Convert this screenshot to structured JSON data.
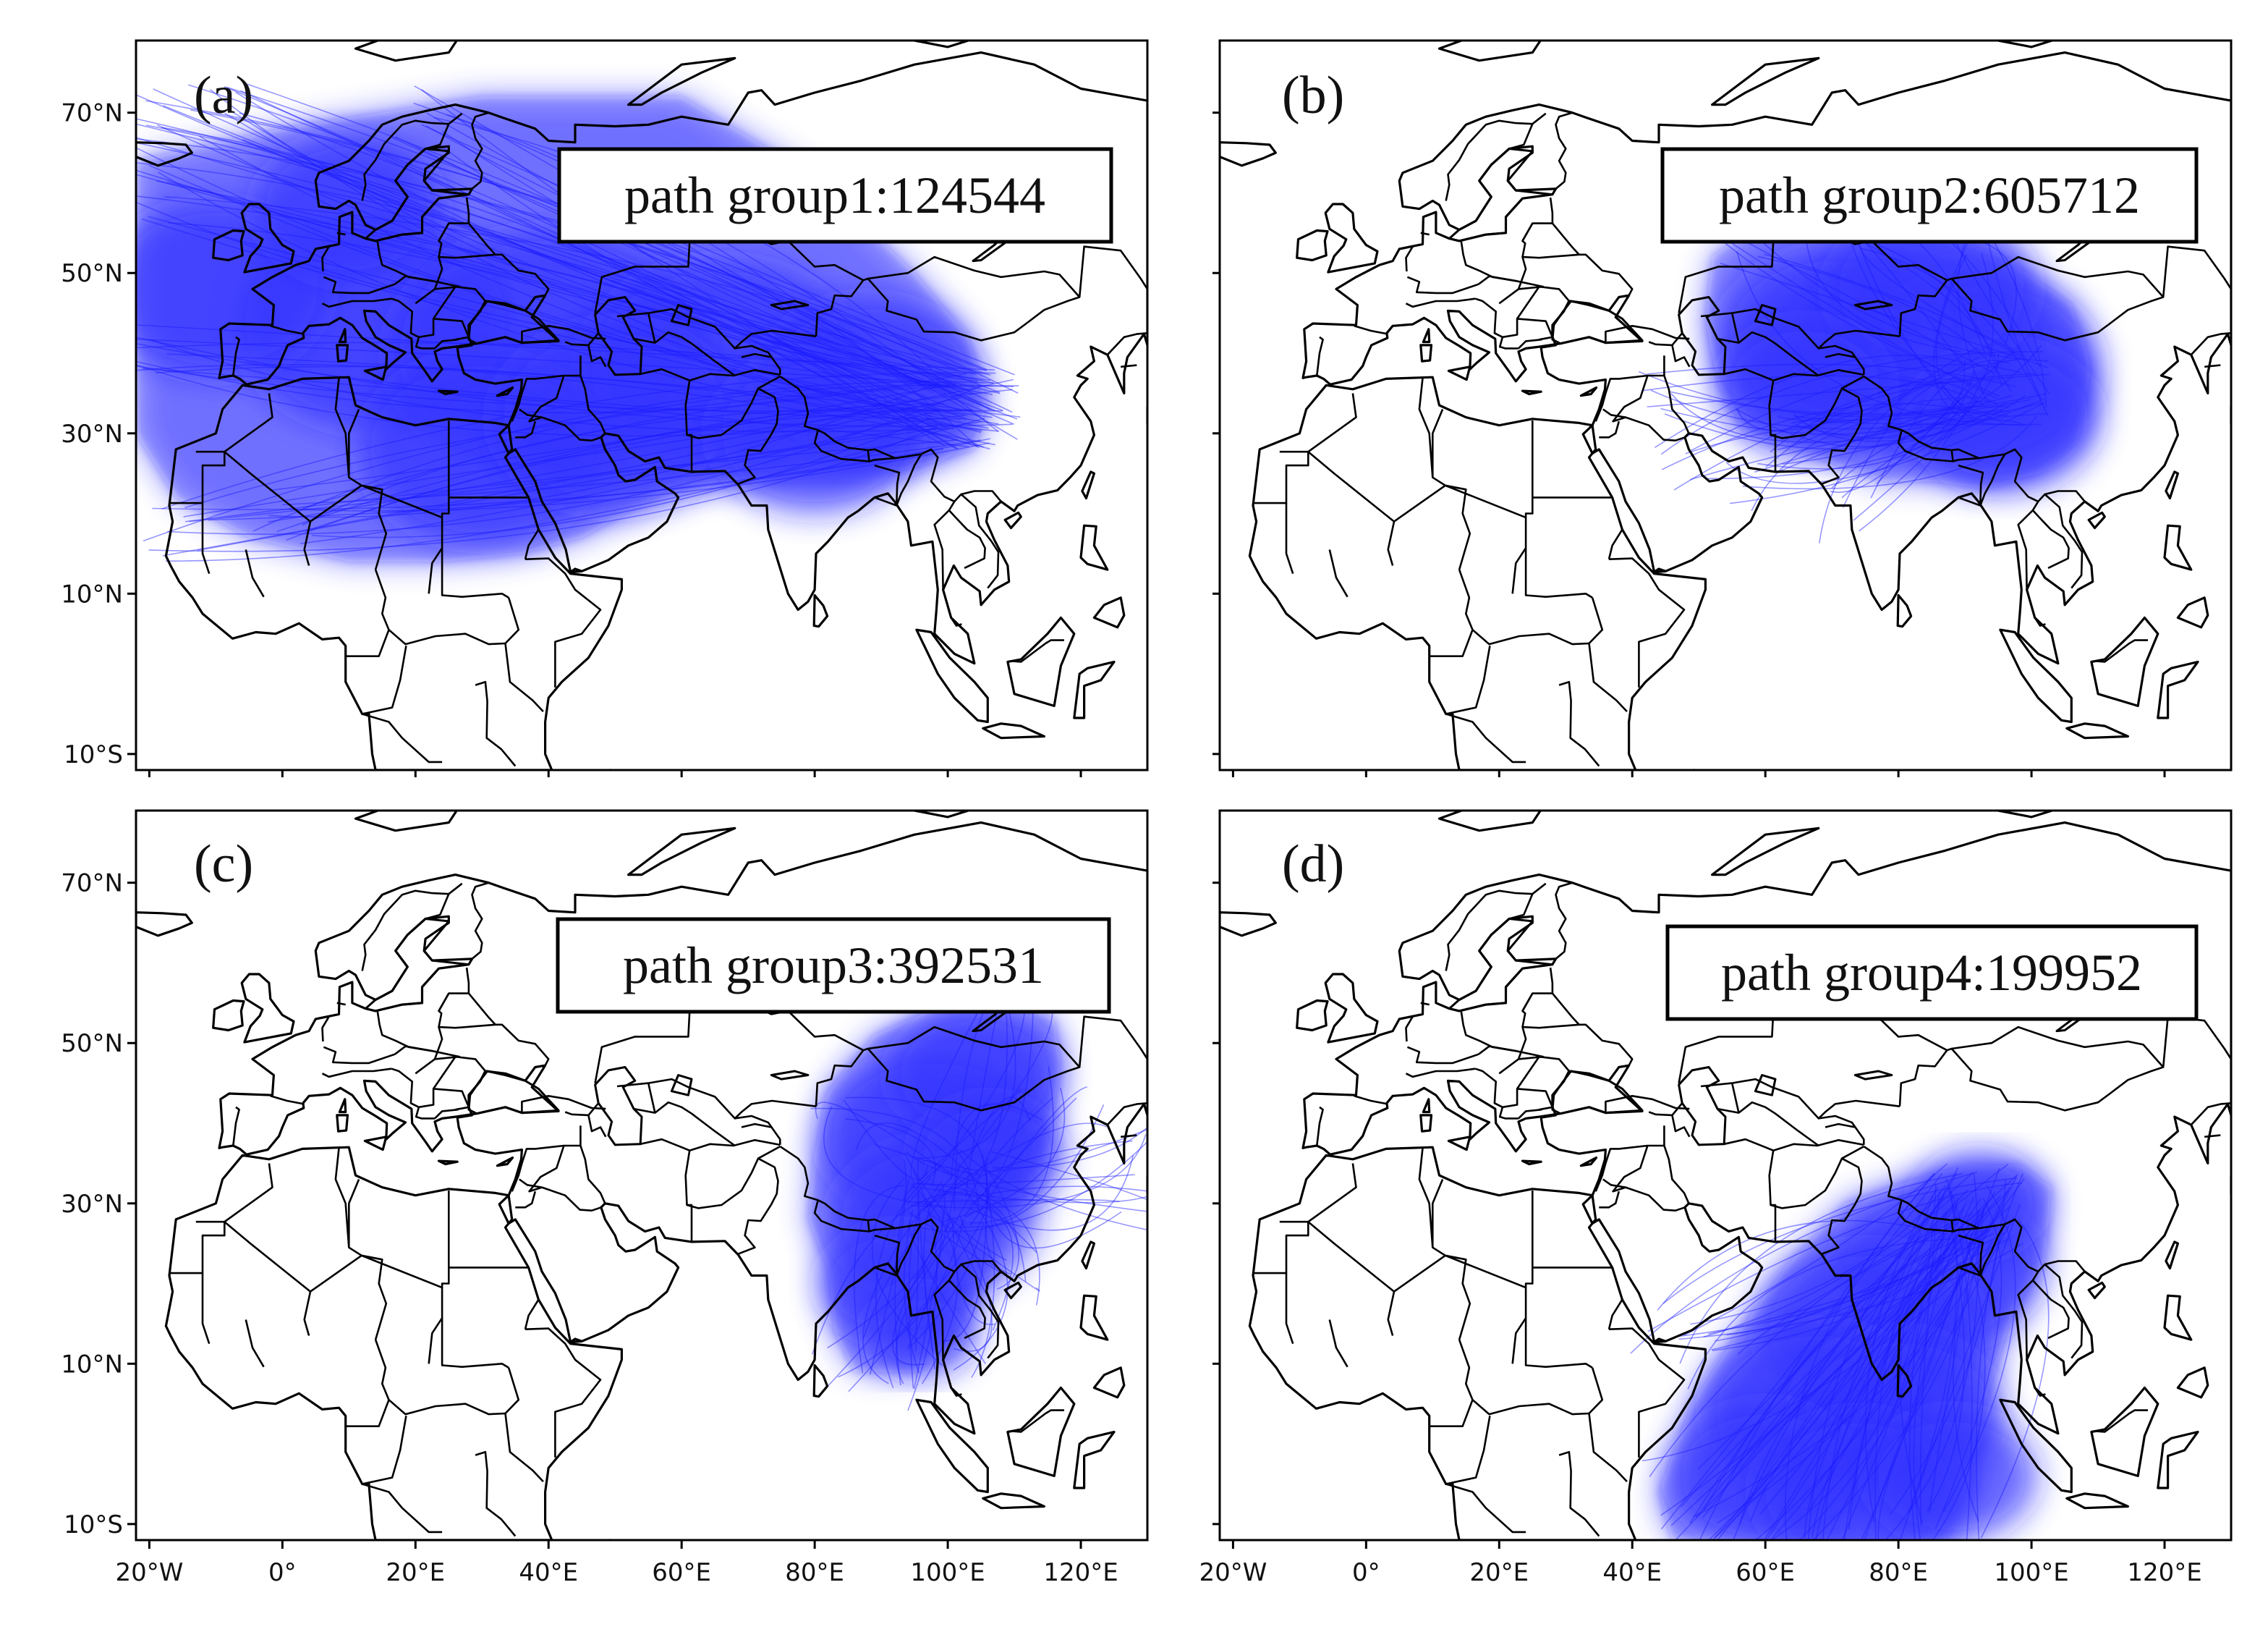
{
  "colors": {
    "path_color": "#1a1aff",
    "land_outline": "#000000",
    "background": "#ffffff"
  },
  "map_extent": {
    "lon": [
      -22,
      130
    ],
    "lat": [
      -12,
      79
    ]
  },
  "axis": {
    "lat_ticks": [
      {
        "value": 70,
        "label": "70°N"
      },
      {
        "value": 50,
        "label": "50°N"
      },
      {
        "value": 30,
        "label": "30°N"
      },
      {
        "value": 10,
        "label": "10°N"
      },
      {
        "value": -10,
        "label": "10°S"
      }
    ],
    "lon_ticks": [
      {
        "value": -20,
        "label": "20°W"
      },
      {
        "value": 0,
        "label": "0°"
      },
      {
        "value": 20,
        "label": "20°E"
      },
      {
        "value": 40,
        "label": "40°E"
      },
      {
        "value": 60,
        "label": "60°E"
      },
      {
        "value": 80,
        "label": "80°E"
      },
      {
        "value": 100,
        "label": "100°E"
      },
      {
        "value": 120,
        "label": "120°E"
      }
    ]
  },
  "panels": [
    {
      "id": "a",
      "letter": "(a)",
      "label": "path group1:124544",
      "path_group": 1,
      "trajectory_count": 124544,
      "density_region": "Europe, North Africa and Middle East toward western China",
      "show_lat_labels": true,
      "show_lon_labels": false
    },
    {
      "id": "b",
      "letter": "(b)",
      "label": "path group2:605712",
      "path_group": 2,
      "trajectory_count": 605712,
      "density_region": "Central Asia and western China",
      "show_lat_labels": false,
      "show_lon_labels": false
    },
    {
      "id": "c",
      "letter": "(c)",
      "label": "path group3:392531",
      "path_group": 3,
      "trajectory_count": 392531,
      "density_region": "Tibetan Plateau, southern China and Southeast Asia",
      "show_lat_labels": true,
      "show_lon_labels": true
    },
    {
      "id": "d",
      "letter": "(d)",
      "label": "path group4:199952",
      "path_group": 4,
      "trajectory_count": 199952,
      "density_region": "Arabian Sea, Indian Ocean and South Asia",
      "show_lat_labels": false,
      "show_lon_labels": true
    }
  ]
}
